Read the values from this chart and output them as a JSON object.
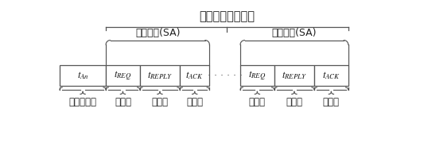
{
  "title": "节点时隙调度方案",
  "sa_label": "时隙指派(SA)",
  "bottom_labels_left": [
    "信号包扩散",
    "请求包",
    "回复包",
    "确认包"
  ],
  "bottom_labels_right": [
    "请求包",
    "回复包",
    "确认包"
  ],
  "bg_color": "#ffffff",
  "line_color": "#555555",
  "box_labels": [
    "$t_{An}$",
    "$t_{REQ}$",
    "$t_{REPLY}$",
    "$t_{ACK}$",
    "$t_{REQ}$",
    "$t_{REPLY}$",
    "$t_{ACK}$"
  ]
}
